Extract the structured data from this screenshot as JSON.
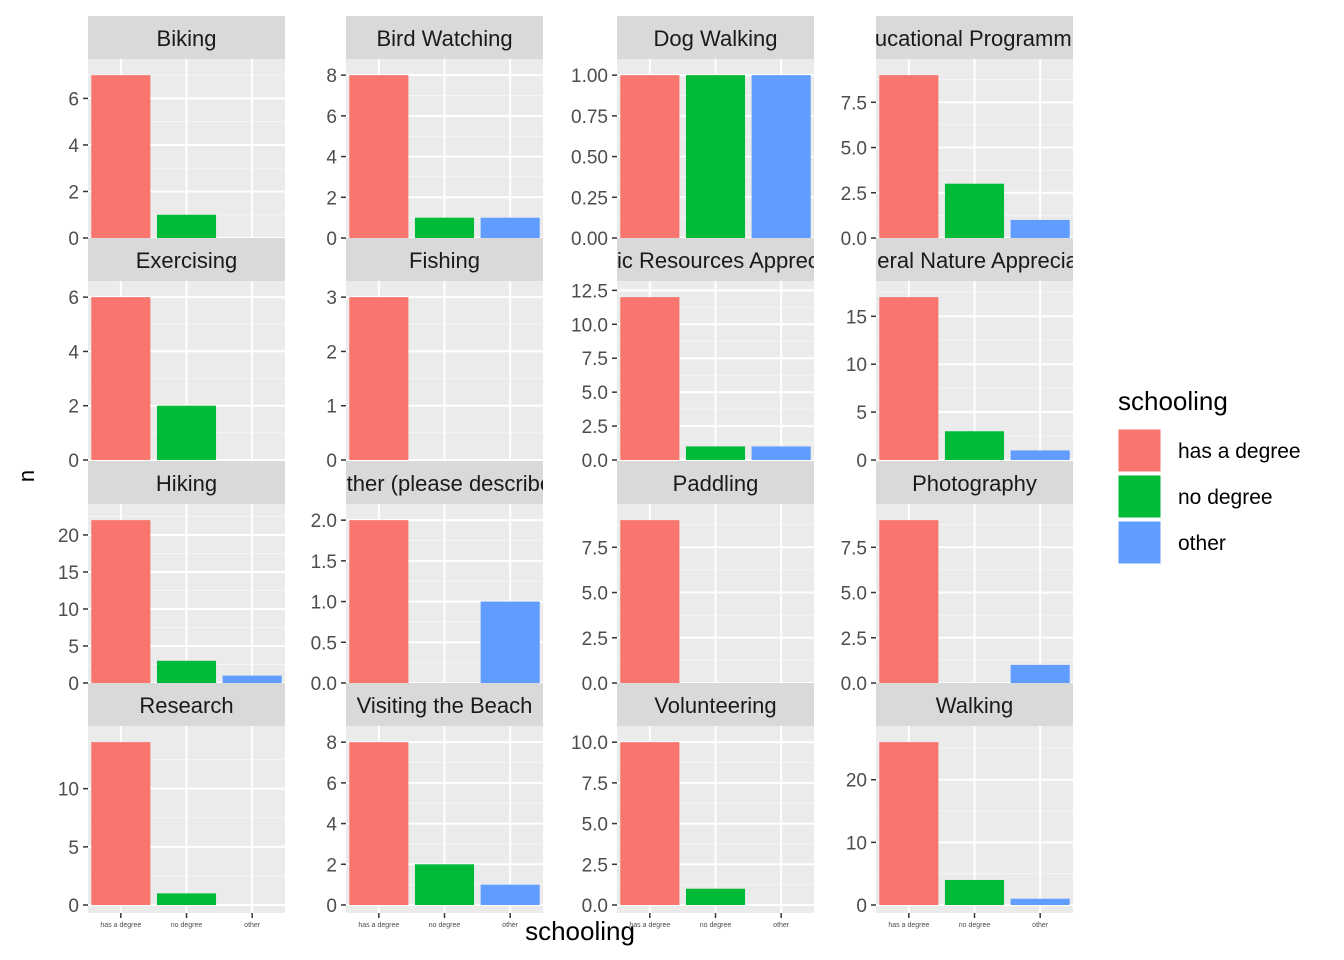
{
  "chart_data": {
    "type": "bar",
    "facet_layout": "4x4 grid",
    "categories": [
      "has a degree",
      "no degree",
      "other"
    ],
    "xlabel": "schooling",
    "ylabel": "n",
    "legend": {
      "title": "schooling",
      "placement": "right",
      "entries": [
        {
          "label": "has a degree",
          "color": "#F8766D"
        },
        {
          "label": "no degree",
          "color": "#00BA38"
        },
        {
          "label": "other",
          "color": "#619CFF"
        }
      ]
    },
    "panels": [
      {
        "title": "Biking",
        "values": [
          7,
          1,
          0
        ],
        "ylim": [
          0,
          7.35
        ],
        "yticks": [
          "0",
          "2",
          "4",
          "6"
        ],
        "tick_values": [
          0,
          2,
          4,
          6
        ]
      },
      {
        "title": "Bird Watching",
        "values": [
          8,
          1,
          1
        ],
        "ylim": [
          0,
          8.4
        ],
        "yticks": [
          "0",
          "2",
          "4",
          "6",
          "8"
        ],
        "tick_values": [
          0,
          2,
          4,
          6,
          8
        ]
      },
      {
        "title": "Dog Walking",
        "values": [
          1,
          1,
          1
        ],
        "ylim": [
          0,
          1.05
        ],
        "yticks": [
          "0.00",
          "0.25",
          "0.50",
          "0.75",
          "1.00"
        ],
        "tick_values": [
          0,
          0.25,
          0.5,
          0.75,
          1
        ]
      },
      {
        "title": "Educational Programming",
        "values": [
          9,
          3,
          1
        ],
        "ylim": [
          0,
          9.45
        ],
        "yticks": [
          "0.0",
          "2.5",
          "5.0",
          "7.5"
        ],
        "tick_values": [
          0,
          2.5,
          5,
          7.5
        ]
      },
      {
        "title": "Exercising",
        "values": [
          6,
          2,
          0
        ],
        "ylim": [
          0,
          6.3
        ],
        "yticks": [
          "0",
          "2",
          "4",
          "6"
        ],
        "tick_values": [
          0,
          2,
          4,
          6
        ]
      },
      {
        "title": "Fishing",
        "values": [
          3,
          0,
          0
        ],
        "ylim": [
          0,
          3.15
        ],
        "yticks": [
          "0",
          "1",
          "2",
          "3"
        ],
        "tick_values": [
          0,
          1,
          2,
          3
        ]
      },
      {
        "title": "Historic Resources Appreciation",
        "values": [
          12,
          1,
          1
        ],
        "ylim": [
          0,
          12.6
        ],
        "yticks": [
          "0.0",
          "2.5",
          "5.0",
          "7.5",
          "10.0",
          "12.5"
        ],
        "tick_values": [
          0,
          2.5,
          5,
          7.5,
          10,
          12.5
        ]
      },
      {
        "title": "General Nature Appreciation",
        "values": [
          17,
          3,
          1
        ],
        "ylim": [
          0,
          17.85
        ],
        "yticks": [
          "0",
          "5",
          "10",
          "15"
        ],
        "tick_values": [
          0,
          5,
          10,
          15
        ]
      },
      {
        "title": "Hiking",
        "values": [
          22,
          3,
          1
        ],
        "ylim": [
          0,
          23.1
        ],
        "yticks": [
          "0",
          "5",
          "10",
          "15",
          "20"
        ],
        "tick_values": [
          0,
          5,
          10,
          15,
          20
        ]
      },
      {
        "title": "Other (please describe)",
        "values": [
          2,
          0,
          1
        ],
        "ylim": [
          0,
          2.1
        ],
        "yticks": [
          "0.0",
          "0.5",
          "1.0",
          "1.5",
          "2.0"
        ],
        "tick_values": [
          0,
          0.5,
          1,
          1.5,
          2
        ]
      },
      {
        "title": "Paddling",
        "values": [
          9,
          0,
          0
        ],
        "ylim": [
          0,
          9.45
        ],
        "yticks": [
          "0.0",
          "2.5",
          "5.0",
          "7.5"
        ],
        "tick_values": [
          0,
          2.5,
          5,
          7.5
        ]
      },
      {
        "title": "Photography",
        "values": [
          9,
          0,
          1
        ],
        "ylim": [
          0,
          9.45
        ],
        "yticks": [
          "0.0",
          "2.5",
          "5.0",
          "7.5"
        ],
        "tick_values": [
          0,
          2.5,
          5,
          7.5
        ]
      },
      {
        "title": "Research",
        "values": [
          14,
          1,
          0
        ],
        "ylim": [
          0,
          14.7
        ],
        "yticks": [
          "0",
          "5",
          "10"
        ],
        "tick_values": [
          0,
          5,
          10
        ]
      },
      {
        "title": "Visiting the Beach",
        "values": [
          8,
          2,
          1
        ],
        "ylim": [
          0,
          8.4
        ],
        "yticks": [
          "0",
          "2",
          "4",
          "6",
          "8"
        ],
        "tick_values": [
          0,
          2,
          4,
          6,
          8
        ]
      },
      {
        "title": "Volunteering",
        "values": [
          10,
          1,
          0
        ],
        "ylim": [
          0,
          10.5
        ],
        "yticks": [
          "0.0",
          "2.5",
          "5.0",
          "7.5",
          "10.0"
        ],
        "tick_values": [
          0,
          2.5,
          5,
          7.5,
          10
        ]
      },
      {
        "title": "Walking",
        "values": [
          26,
          4,
          1
        ],
        "ylim": [
          0,
          27.3
        ],
        "yticks": [
          "0",
          "10",
          "20"
        ],
        "tick_values": [
          0,
          10,
          20
        ]
      }
    ]
  }
}
